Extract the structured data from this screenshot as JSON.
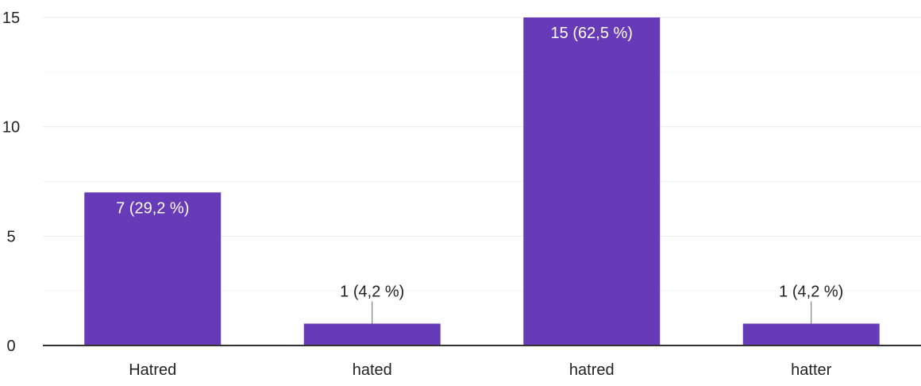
{
  "chart_data": {
    "type": "bar",
    "categories": [
      "Hatred",
      "hated",
      "hatred",
      "hatter"
    ],
    "values": [
      7,
      1,
      15,
      1
    ],
    "data_labels": [
      "7 (29,2 %)",
      "1 (4,2 %)",
      "15 (62,5 %)",
      "1 (4,2 %)"
    ],
    "ylim": [
      0,
      15
    ],
    "y_ticks": [
      {
        "value": 0,
        "label": "0"
      },
      {
        "value": 5,
        "label": "5"
      },
      {
        "value": 10,
        "label": "10"
      },
      {
        "value": 15,
        "label": "15"
      }
    ],
    "minor_grid": [
      2.5,
      7.5,
      12.5
    ],
    "grid": true,
    "title": "",
    "xlabel": "",
    "ylabel": ""
  },
  "colors": {
    "bar": "#673ab7",
    "grid": "#ebebeb",
    "axis": "#333333",
    "label_inside": "#ffffff",
    "label_outside": "#222222",
    "tick_label": "#222222"
  }
}
